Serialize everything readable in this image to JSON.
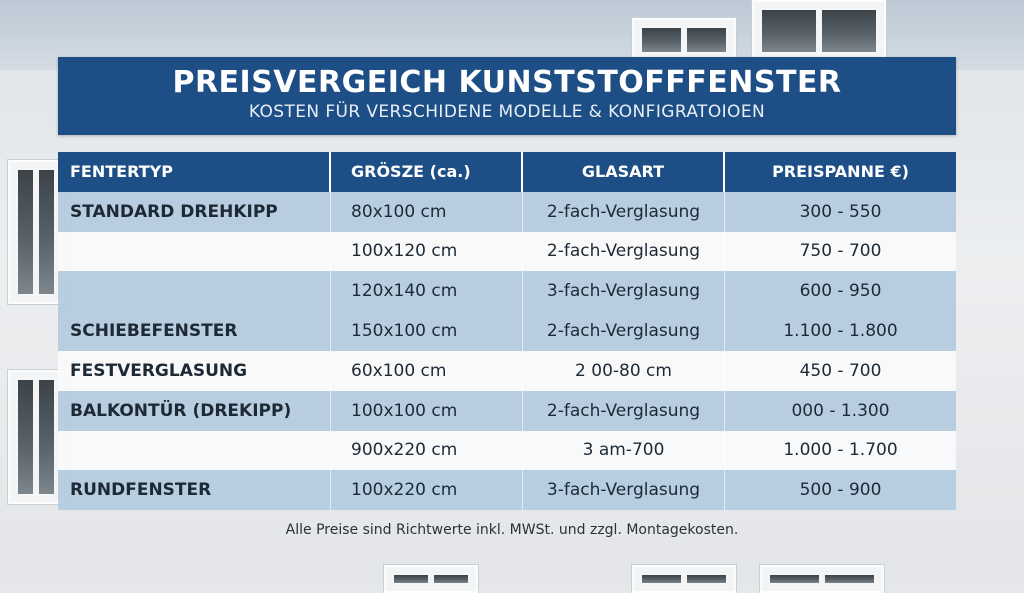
{
  "title": "PREISVERGEICH KUNSTSTOFFFENSTER",
  "subtitle": "KOSTEN FÜR VERSCHIDENE MODELLE & KONFIGRATOIOEN",
  "table": {
    "headers": [
      "FENTERTYP",
      "GRÖSZE (ca.)",
      "GLASART",
      "PREISPANNE €)"
    ],
    "rows": [
      [
        "STANDARD DREHKIPP",
        "80x100 cm",
        "2-fach-Verglasung",
        "300 - 550"
      ],
      [
        "",
        "100x120 cm",
        "2-fach-Verglasung",
        "750 - 700"
      ],
      [
        "",
        "120x140 cm",
        "3-fach-Verglasung",
        "600 - 950"
      ],
      [
        "SCHIEBEFENSTER",
        "150x100 cm",
        "2-fach-Verglasung",
        "1.100 - 1.800"
      ],
      [
        "FESTVERGLASUNG",
        "60x100 cm",
        "2 00-80 cm",
        "450 - 700"
      ],
      [
        "BALKONTÜR (DREKIPP)",
        "100x100 cm",
        "2-fach-Verglasung",
        "000 - 1.300"
      ],
      [
        "",
        "900x220 cm",
        "3 am-700",
        "1.000 - 1.700"
      ],
      [
        "RUNDFENSTER",
        "100x220 cm",
        "3-fach-Verglasung",
        "500 - 900"
      ]
    ]
  },
  "footnote": "Alle Preise sind Richtwerte inkl. MWSt. und zzgl. Montagekosten.",
  "colors": {
    "header_blue": "#1d4f86",
    "row_blue": "#b0c9de",
    "row_white": "#fafafb"
  }
}
